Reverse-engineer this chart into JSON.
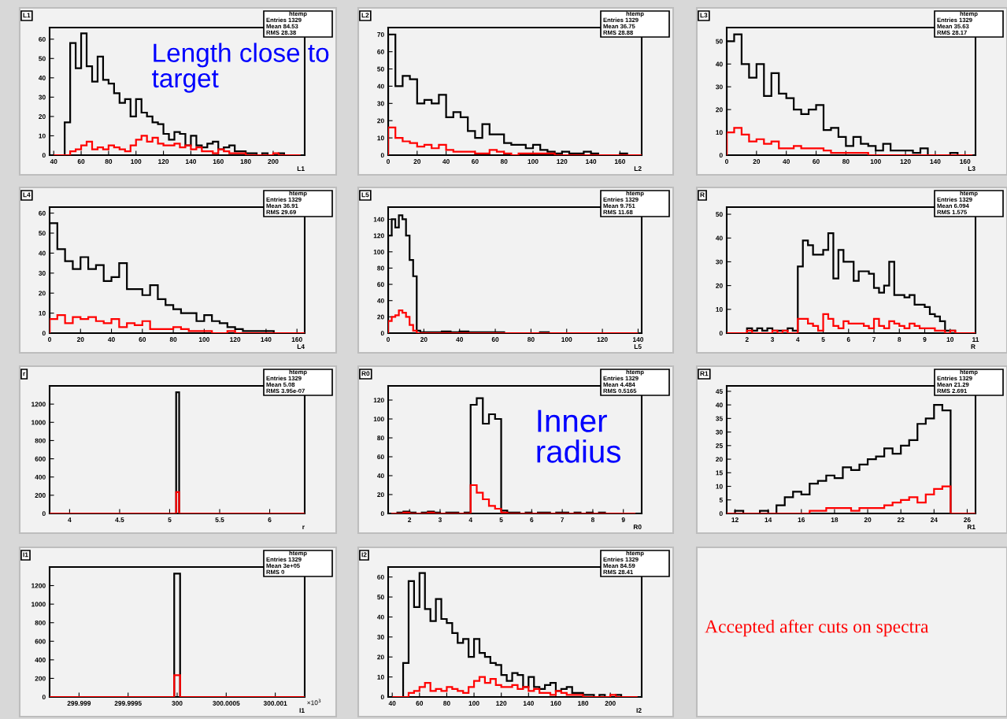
{
  "chart_data": [
    {
      "type": "histogram",
      "title": "L1",
      "xlabel": "L1",
      "xlim": [
        37,
        223
      ],
      "xticks": [
        40,
        60,
        80,
        100,
        120,
        140,
        160,
        180,
        200
      ],
      "ylim": [
        0,
        66
      ],
      "yticks": [
        0,
        10,
        20,
        30,
        40,
        50,
        60
      ],
      "grid": false,
      "bins": [
        40,
        44,
        48,
        52,
        56,
        60,
        64,
        68,
        72,
        76,
        80,
        84,
        88,
        92,
        96,
        100,
        104,
        108,
        112,
        116,
        120,
        124,
        128,
        132,
        136,
        140,
        144,
        148,
        152,
        156,
        160,
        164,
        168,
        172,
        176,
        180,
        184,
        188,
        192,
        196,
        200,
        204,
        208,
        212,
        216,
        220
      ],
      "series": [
        {
          "color": "#000000",
          "values": [
            0,
            0,
            17,
            58,
            45,
            63,
            46,
            38,
            51,
            39,
            37,
            32,
            27,
            29,
            20,
            29,
            22,
            20,
            17,
            16,
            11,
            8,
            12,
            11,
            5,
            10,
            5,
            4,
            6,
            7,
            3,
            4,
            5,
            2,
            2,
            1,
            1,
            0,
            1,
            0,
            0,
            1,
            0,
            0,
            0
          ]
        },
        {
          "color": "#ff0000",
          "values": [
            0,
            0,
            0,
            2,
            3,
            5,
            7,
            3,
            4,
            3,
            5,
            4,
            3,
            2,
            5,
            8,
            10,
            7,
            9,
            6,
            5,
            5,
            6,
            4,
            5,
            3,
            4,
            2,
            2,
            1,
            3,
            2,
            1,
            1,
            1,
            0,
            0,
            0,
            0,
            0,
            1,
            0,
            0,
            0,
            0
          ]
        }
      ],
      "annotations": [
        "htemp",
        "Entries 1329",
        "Mean 84.53",
        "RMS 28.38",
        "Length close to target"
      ]
    },
    {
      "type": "histogram",
      "title": "L2",
      "xlabel": "L2",
      "xlim": [
        0,
        175
      ],
      "xticks": [
        0,
        20,
        40,
        60,
        80,
        100,
        120,
        140,
        160
      ],
      "ylim": [
        0,
        74
      ],
      "yticks": [
        0,
        10,
        20,
        30,
        40,
        50,
        60,
        70
      ],
      "grid": false,
      "bins": [
        0,
        5,
        10,
        15,
        20,
        25,
        30,
        35,
        40,
        45,
        50,
        55,
        60,
        65,
        70,
        75,
        80,
        85,
        90,
        95,
        100,
        105,
        110,
        115,
        120,
        125,
        130,
        135,
        140,
        145,
        150,
        155,
        160,
        165,
        170,
        175
      ],
      "series": [
        {
          "color": "#000000",
          "values": [
            70,
            40,
            46,
            44,
            30,
            32,
            30,
            35,
            22,
            25,
            22,
            14,
            10,
            18,
            12,
            12,
            7,
            6,
            6,
            4,
            6,
            3,
            2,
            1,
            2,
            1,
            1,
            2,
            1,
            0,
            0,
            0,
            1,
            0,
            0
          ]
        },
        {
          "color": "#ff0000",
          "values": [
            16,
            10,
            8,
            7,
            5,
            6,
            4,
            6,
            3,
            2,
            2,
            2,
            1,
            1,
            3,
            2,
            1,
            0,
            1,
            1,
            1,
            1,
            1,
            0,
            0,
            0,
            0,
            0,
            0,
            0,
            0,
            0,
            0,
            0,
            0
          ]
        }
      ],
      "annotations": [
        "htemp",
        "Entries 1329",
        "Mean 36.75",
        "RMS 28.88"
      ]
    },
    {
      "type": "histogram",
      "title": "L3",
      "xlabel": "L3",
      "xlim": [
        0,
        167
      ],
      "xticks": [
        0,
        20,
        40,
        60,
        80,
        100,
        120,
        140,
        160
      ],
      "ylim": [
        0,
        56
      ],
      "yticks": [
        0,
        10,
        20,
        30,
        40,
        50
      ],
      "grid": false,
      "bins": [
        0,
        5,
        10,
        15,
        20,
        25,
        30,
        35,
        40,
        45,
        50,
        55,
        60,
        65,
        70,
        75,
        80,
        85,
        90,
        95,
        100,
        105,
        110,
        115,
        120,
        125,
        130,
        135,
        140,
        145,
        150,
        155,
        160,
        165
      ],
      "series": [
        {
          "color": "#000000",
          "values": [
            50,
            53,
            40,
            34,
            40,
            26,
            36,
            27,
            25,
            20,
            18,
            20,
            22,
            11,
            12,
            8,
            4,
            8,
            5,
            4,
            2,
            5,
            2,
            2,
            2,
            1,
            3,
            0,
            0,
            0,
            1,
            0,
            0
          ]
        },
        {
          "color": "#ff0000",
          "values": [
            10,
            12,
            9,
            6,
            7,
            5,
            6,
            3,
            3,
            4,
            3,
            3,
            3,
            2,
            1,
            1,
            1,
            1,
            1,
            0,
            0,
            0,
            0,
            0,
            0,
            0,
            0,
            0,
            0,
            0,
            0,
            0,
            0
          ]
        }
      ],
      "annotations": [
        "htemp",
        "Entries 1329",
        "Mean 35.63",
        "RMS 28.17"
      ]
    },
    {
      "type": "histogram",
      "title": "L4",
      "xlabel": "L4",
      "xlim": [
        0,
        165
      ],
      "xticks": [
        0,
        20,
        40,
        60,
        80,
        100,
        120,
        140,
        160
      ],
      "ylim": [
        0,
        63
      ],
      "yticks": [
        0,
        10,
        20,
        30,
        40,
        50,
        60
      ],
      "grid": false,
      "bins": [
        0,
        5,
        10,
        15,
        20,
        25,
        30,
        35,
        40,
        45,
        50,
        55,
        60,
        65,
        70,
        75,
        80,
        85,
        90,
        95,
        100,
        105,
        110,
        115,
        120,
        125,
        130,
        135,
        140,
        145,
        150,
        155,
        160,
        165
      ],
      "series": [
        {
          "color": "#000000",
          "values": [
            55,
            42,
            36,
            32,
            38,
            32,
            34,
            26,
            28,
            35,
            22,
            22,
            19,
            24,
            17,
            14,
            12,
            10,
            10,
            6,
            9,
            6,
            5,
            3,
            2,
            1,
            1,
            1,
            1,
            0,
            0,
            0,
            0
          ]
        },
        {
          "color": "#ff0000",
          "values": [
            7,
            9,
            5,
            8,
            7,
            8,
            6,
            5,
            7,
            3,
            5,
            4,
            6,
            2,
            2,
            2,
            3,
            2,
            1,
            1,
            1,
            0,
            0,
            1,
            0,
            0,
            0,
            0,
            0,
            0,
            0,
            0,
            0
          ]
        }
      ],
      "annotations": [
        "htemp",
        "Entries 1329",
        "Mean 36.91",
        "RMS 29.69"
      ]
    },
    {
      "type": "histogram",
      "title": "L5",
      "xlabel": "L5",
      "xlim": [
        0,
        142
      ],
      "xticks": [
        0,
        20,
        40,
        60,
        80,
        100,
        120,
        140
      ],
      "ylim": [
        0,
        155
      ],
      "yticks": [
        0,
        20,
        40,
        60,
        80,
        100,
        120,
        140
      ],
      "grid": false,
      "bins": [
        0,
        2,
        4,
        6,
        8,
        10,
        12,
        14,
        16,
        18,
        20,
        25,
        30,
        35,
        40,
        45,
        50,
        55,
        60,
        65,
        70,
        75,
        80,
        85,
        90,
        95,
        100,
        105,
        110,
        115,
        120,
        125,
        130,
        135,
        140
      ],
      "series": [
        {
          "color": "#000000",
          "values": [
            120,
            140,
            130,
            145,
            140,
            120,
            90,
            70,
            3,
            1,
            1,
            1,
            2,
            1,
            2,
            1,
            1,
            1,
            1,
            0,
            0,
            0,
            0,
            1,
            0,
            0,
            0,
            0,
            0,
            0,
            0,
            0,
            0,
            0
          ]
        },
        {
          "color": "#ff0000",
          "values": [
            15,
            20,
            22,
            28,
            25,
            20,
            10,
            3,
            0,
            0,
            0,
            0,
            0,
            0,
            0,
            0,
            0,
            0,
            0,
            0,
            0,
            0,
            0,
            0,
            0,
            0,
            0,
            0,
            0,
            0,
            0,
            0,
            0,
            0
          ]
        }
      ],
      "annotations": [
        "htemp",
        "Entries 1329",
        "Mean 9.751",
        "RMS 11.68"
      ]
    },
    {
      "type": "histogram",
      "title": "R",
      "xlabel": "R",
      "xlim": [
        1.2,
        11
      ],
      "xticks": [
        2,
        3,
        4,
        5,
        6,
        7,
        8,
        9,
        10,
        11
      ],
      "ylim": [
        0,
        53
      ],
      "yticks": [
        0,
        10,
        20,
        30,
        40,
        50
      ],
      "grid": false,
      "bins": [
        1.2,
        1.4,
        1.6,
        1.8,
        2.0,
        2.2,
        2.4,
        2.6,
        2.8,
        3.0,
        3.2,
        3.4,
        3.6,
        3.8,
        4.0,
        4.2,
        4.4,
        4.6,
        4.8,
        5.0,
        5.2,
        5.4,
        5.6,
        5.8,
        6.0,
        6.2,
        6.4,
        6.6,
        6.8,
        7.0,
        7.2,
        7.4,
        7.6,
        7.8,
        8.0,
        8.2,
        8.4,
        8.6,
        8.8,
        9.0,
        9.2,
        9.4,
        9.6,
        9.8,
        10.0,
        10.2,
        10.4,
        10.6,
        10.8,
        11.0
      ],
      "series": [
        {
          "color": "#000000",
          "values": [
            0,
            0,
            0,
            0,
            2,
            1,
            2,
            1,
            2,
            1,
            1,
            1,
            2,
            1,
            28,
            39,
            37,
            33,
            33,
            35,
            42,
            23,
            35,
            30,
            30,
            22,
            26,
            26,
            25,
            19,
            17,
            20,
            30,
            16,
            16,
            15,
            16,
            12,
            12,
            11,
            8,
            7,
            5,
            1,
            1,
            0,
            0,
            0,
            0
          ]
        },
        {
          "color": "#ff0000",
          "values": [
            0,
            0,
            0,
            0,
            1,
            0,
            0,
            0,
            0,
            1,
            0,
            1,
            0,
            0,
            6,
            6,
            4,
            3,
            1,
            8,
            6,
            3,
            2,
            5,
            4,
            4,
            4,
            3,
            2,
            6,
            3,
            2,
            5,
            4,
            3,
            2,
            4,
            3,
            2,
            2,
            2,
            1,
            1,
            0,
            1,
            0,
            0,
            0,
            0
          ]
        }
      ],
      "annotations": [
        "htemp",
        "Entries 1329",
        "Mean 6.094",
        "RMS 1.575"
      ]
    },
    {
      "type": "histogram",
      "title": "r",
      "xlabel": "r",
      "xlim": [
        3.8,
        6.35
      ],
      "xticks": [
        4,
        4.5,
        5,
        5.5,
        6
      ],
      "ylim": [
        0,
        1400
      ],
      "yticks": [
        0,
        200,
        400,
        600,
        800,
        1000,
        1200
      ],
      "grid": false,
      "bins": [
        3.8,
        5.065,
        5.095,
        6.35
      ],
      "series": [
        {
          "color": "#000000",
          "values": [
            0,
            1329,
            0
          ]
        },
        {
          "color": "#ff0000",
          "values": [
            0,
            235,
            0
          ]
        }
      ],
      "annotations": [
        "htemp",
        "Entries 1329",
        "Mean 5.08",
        "RMS 3.95e-07"
      ]
    },
    {
      "type": "histogram",
      "title": "R0",
      "xlabel": "R0",
      "xlim": [
        1.3,
        9.6
      ],
      "xticks": [
        2,
        3,
        4,
        5,
        6,
        7,
        8,
        9
      ],
      "ylim": [
        0,
        135
      ],
      "yticks": [
        0,
        20,
        40,
        60,
        80,
        100,
        120
      ],
      "grid": false,
      "bins": [
        1.4,
        1.6,
        1.8,
        2.0,
        2.2,
        2.4,
        2.6,
        2.8,
        3.0,
        3.2,
        3.4,
        3.6,
        3.8,
        4.0,
        4.2,
        4.4,
        4.6,
        4.8,
        5.0,
        5.2,
        5.4,
        5.6,
        5.8,
        6.0,
        6.2,
        6.4,
        6.6,
        6.8,
        7.0,
        7.2,
        7.4,
        7.6,
        7.8,
        8.0,
        8.2,
        8.4,
        8.6,
        8.8,
        9.0,
        9.2,
        9.4
      ],
      "series": [
        {
          "color": "#000000",
          "values": [
            0,
            1,
            2,
            1,
            0,
            1,
            2,
            1,
            0,
            1,
            1,
            0,
            1,
            115,
            122,
            95,
            105,
            100,
            3,
            1,
            1,
            0,
            1,
            0,
            1,
            1,
            0,
            1,
            1,
            0,
            1,
            0,
            1,
            0,
            1,
            0,
            0,
            0,
            0,
            0
          ]
        },
        {
          "color": "#ff0000",
          "values": [
            0,
            0,
            1,
            0,
            0,
            0,
            1,
            0,
            0,
            0,
            0,
            0,
            0,
            30,
            22,
            15,
            8,
            5,
            1,
            0,
            0,
            0,
            0,
            0,
            0,
            0,
            0,
            0,
            0,
            0,
            0,
            0,
            0,
            0,
            0,
            0,
            0,
            0,
            0,
            0
          ]
        }
      ],
      "annotations": [
        "htemp",
        "Entries 1329",
        "Mean 4.484",
        "RMS 0.5165",
        "Inner radius"
      ]
    },
    {
      "type": "histogram",
      "title": "R1",
      "xlabel": "R1",
      "xlim": [
        11.5,
        26.5
      ],
      "xticks": [
        12,
        14,
        16,
        18,
        20,
        22,
        24,
        26
      ],
      "ylim": [
        0,
        47
      ],
      "yticks": [
        0,
        5,
        10,
        15,
        20,
        25,
        30,
        35,
        40,
        45
      ],
      "grid": false,
      "bins": [
        11.5,
        12,
        12.5,
        13,
        13.5,
        14,
        14.5,
        15,
        15.5,
        16,
        16.5,
        17,
        17.5,
        18,
        18.5,
        19,
        19.5,
        20,
        20.5,
        21,
        21.5,
        22,
        22.5,
        23,
        23.5,
        24,
        24.5,
        25,
        25.5,
        26,
        26.5
      ],
      "series": [
        {
          "color": "#000000",
          "values": [
            0,
            1,
            0,
            0,
            1,
            0,
            3,
            6,
            8,
            7,
            11,
            12,
            14,
            13,
            17,
            16,
            18,
            20,
            21,
            24,
            22,
            25,
            27,
            33,
            35,
            40,
            38,
            0,
            0,
            0
          ]
        },
        {
          "color": "#ff0000",
          "values": [
            0,
            0,
            0,
            0,
            0,
            0,
            0,
            0,
            0,
            0,
            1,
            1,
            2,
            2,
            2,
            1,
            2,
            2,
            2,
            3,
            4,
            5,
            6,
            4,
            7,
            9,
            10,
            0,
            0,
            0
          ]
        }
      ],
      "annotations": [
        "htemp",
        "Entries 1329",
        "Mean 21.29",
        "RMS 2.691"
      ]
    },
    {
      "type": "histogram",
      "title": "I1",
      "xlabel": "I1",
      "xlim": [
        299.9987,
        300.0013
      ],
      "xticks": [
        299.999,
        299.9995,
        300,
        300.0005,
        300.001
      ],
      "ylim": [
        0,
        1400
      ],
      "yticks": [
        0,
        200,
        400,
        600,
        800,
        1000,
        1200
      ],
      "grid": false,
      "bins": [
        299.9987,
        299.99997,
        300.00003,
        300.0013
      ],
      "series": [
        {
          "color": "#000000",
          "values": [
            0,
            1329,
            0
          ]
        },
        {
          "color": "#ff0000",
          "values": [
            0,
            235,
            0
          ]
        }
      ],
      "annotations": [
        "htemp",
        "Entries 1329",
        "Mean 3e+05",
        "RMS 0",
        {
          "text": "×10$^{3}$",
          "x": 300.0013,
          "y": 0
        }
      ]
    },
    {
      "type": "histogram",
      "title": "I2",
      "xlabel": "I2",
      "xlim": [
        37,
        223
      ],
      "xticks": [
        40,
        60,
        80,
        100,
        120,
        140,
        160,
        180,
        200
      ],
      "ylim": [
        0,
        65
      ],
      "yticks": [
        0,
        10,
        20,
        30,
        40,
        50,
        60
      ],
      "grid": false,
      "bins": [
        40,
        44,
        48,
        52,
        56,
        60,
        64,
        68,
        72,
        76,
        80,
        84,
        88,
        92,
        96,
        100,
        104,
        108,
        112,
        116,
        120,
        124,
        128,
        132,
        136,
        140,
        144,
        148,
        152,
        156,
        160,
        164,
        168,
        172,
        176,
        180,
        184,
        188,
        192,
        196,
        200,
        204,
        208,
        212,
        216,
        220
      ],
      "series": [
        {
          "color": "#000000",
          "values": [
            0,
            0,
            17,
            58,
            45,
            62,
            44,
            38,
            49,
            39,
            37,
            32,
            27,
            29,
            20,
            29,
            22,
            20,
            17,
            16,
            11,
            8,
            12,
            11,
            5,
            10,
            5,
            4,
            6,
            7,
            3,
            4,
            5,
            2,
            2,
            1,
            1,
            0,
            1,
            0,
            0,
            1,
            0,
            0,
            0
          ]
        },
        {
          "color": "#ff0000",
          "values": [
            0,
            0,
            0,
            2,
            3,
            5,
            7,
            3,
            4,
            3,
            5,
            4,
            3,
            2,
            5,
            8,
            10,
            7,
            9,
            6,
            5,
            5,
            6,
            4,
            5,
            3,
            4,
            2,
            2,
            1,
            3,
            2,
            1,
            1,
            1,
            0,
            0,
            0,
            0,
            0,
            1,
            0,
            0,
            0,
            0
          ]
        }
      ],
      "annotations": [
        "htemp",
        "Entries 1329",
        "Mean 84.59",
        "RMS 28.41"
      ]
    },
    {
      "type": "other",
      "annotations": [
        "Accepted after cuts on spectra"
      ]
    }
  ]
}
